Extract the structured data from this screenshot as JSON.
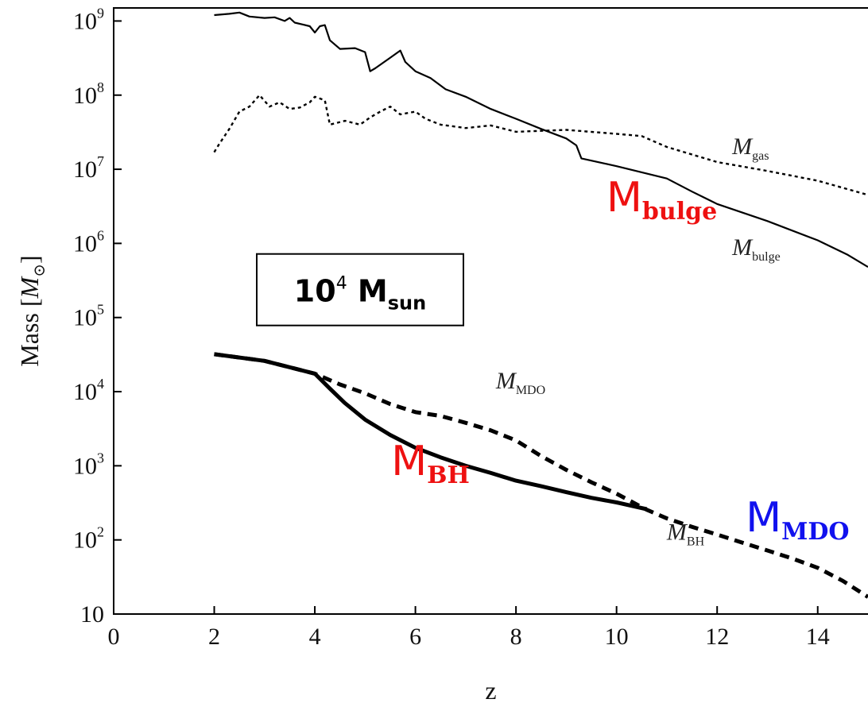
{
  "chart_data": {
    "type": "line",
    "title": "",
    "xlabel": "z",
    "ylabel_main": "Mass [",
    "ylabel_symbol": "M",
    "ylabel_sub": "⊙",
    "ylabel_close": "]",
    "xlim": [
      0,
      15
    ],
    "ylim": [
      10,
      1500000000
    ],
    "yscale": "log",
    "grid": false,
    "x_ticks": [
      "0",
      "2",
      "4",
      "6",
      "8",
      "10",
      "12",
      "14"
    ],
    "y_ticks": [
      {
        "base": "10",
        "exp": "9"
      },
      {
        "base": "10",
        "exp": "8"
      },
      {
        "base": "10",
        "exp": "7"
      },
      {
        "base": "10",
        "exp": "6"
      },
      {
        "base": "10",
        "exp": "5"
      },
      {
        "base": "10",
        "exp": "4"
      },
      {
        "base": "10",
        "exp": "3"
      },
      {
        "base": "10",
        "exp": "2"
      },
      {
        "base": "10",
        "exp": ""
      }
    ],
    "series": [
      {
        "name": "M_bulge",
        "style": "solid-thin",
        "points": [
          [
            2.0,
            1200000000.0
          ],
          [
            2.3,
            1250000000.0
          ],
          [
            2.5,
            1300000000.0
          ],
          [
            2.7,
            1150000000.0
          ],
          [
            3.0,
            1100000000.0
          ],
          [
            3.2,
            1120000000.0
          ],
          [
            3.4,
            1000000000.0
          ],
          [
            3.5,
            1100000000.0
          ],
          [
            3.6,
            950000000.0
          ],
          [
            3.9,
            850000000.0
          ],
          [
            4.0,
            700000000.0
          ],
          [
            4.1,
            850000000.0
          ],
          [
            4.2,
            880000000.0
          ],
          [
            4.3,
            550000000.0
          ],
          [
            4.5,
            420000000.0
          ],
          [
            4.8,
            430000000.0
          ],
          [
            5.0,
            380000000.0
          ],
          [
            5.1,
            210000000.0
          ],
          [
            5.2,
            230000000.0
          ],
          [
            5.5,
            320000000.0
          ],
          [
            5.7,
            400000000.0
          ],
          [
            5.8,
            280000000.0
          ],
          [
            6.0,
            210000000.0
          ],
          [
            6.3,
            170000000.0
          ],
          [
            6.6,
            120000000.0
          ],
          [
            7.0,
            95000000.0
          ],
          [
            7.5,
            65000000.0
          ],
          [
            8.0,
            48000000.0
          ],
          [
            8.5,
            35000000.0
          ],
          [
            9.0,
            26000000.0
          ],
          [
            9.2,
            21000000.0
          ],
          [
            9.3,
            14000000.0
          ],
          [
            10.0,
            11000000.0
          ],
          [
            11.0,
            7500000.0
          ],
          [
            11.5,
            5000000.0
          ],
          [
            12.0,
            3400000.0
          ],
          [
            13.0,
            2000000.0
          ],
          [
            14.0,
            1100000.0
          ],
          [
            14.6,
            700000.0
          ],
          [
            15.0,
            480000.0
          ]
        ]
      },
      {
        "name": "M_gas",
        "style": "dotted",
        "points": [
          [
            2.0,
            17000000.0
          ],
          [
            2.1,
            22000000.0
          ],
          [
            2.3,
            35000000.0
          ],
          [
            2.5,
            60000000.0
          ],
          [
            2.7,
            70000000.0
          ],
          [
            2.9,
            100000000.0
          ],
          [
            3.1,
            70000000.0
          ],
          [
            3.3,
            80000000.0
          ],
          [
            3.5,
            65000000.0
          ],
          [
            3.7,
            68000000.0
          ],
          [
            3.9,
            80000000.0
          ],
          [
            4.0,
            95000000.0
          ],
          [
            4.2,
            85000000.0
          ],
          [
            4.3,
            40000000.0
          ],
          [
            4.6,
            45000000.0
          ],
          [
            4.9,
            40000000.0
          ],
          [
            5.1,
            50000000.0
          ],
          [
            5.3,
            60000000.0
          ],
          [
            5.5,
            70000000.0
          ],
          [
            5.7,
            55000000.0
          ],
          [
            6.0,
            60000000.0
          ],
          [
            6.2,
            48000000.0
          ],
          [
            6.5,
            40000000.0
          ],
          [
            7.0,
            36000000.0
          ],
          [
            7.5,
            39000000.0
          ],
          [
            8.0,
            32000000.0
          ],
          [
            8.5,
            33000000.0
          ],
          [
            9.0,
            34000000.0
          ],
          [
            10.0,
            30000000.0
          ],
          [
            10.5,
            28000000.0
          ],
          [
            11.0,
            20000000.0
          ],
          [
            12.0,
            12500000.0
          ],
          [
            13.0,
            9500000.0
          ],
          [
            14.0,
            7000000.0
          ],
          [
            15.0,
            4500000.0
          ]
        ]
      },
      {
        "name": "M_MDO",
        "style": "dashed-thick",
        "points": [
          [
            2.0,
            32000.0
          ],
          [
            3.0,
            26000.0
          ],
          [
            4.0,
            17500.0
          ],
          [
            4.5,
            12500.0
          ],
          [
            5.0,
            9500.0
          ],
          [
            5.5,
            6800.0
          ],
          [
            6.0,
            5300.0
          ],
          [
            6.5,
            4700.0
          ],
          [
            7.0,
            3800.0
          ],
          [
            7.5,
            3000.0
          ],
          [
            8.0,
            2200.0
          ],
          [
            8.5,
            1350.0
          ],
          [
            9.0,
            880.0
          ],
          [
            9.5,
            600.0
          ],
          [
            10.0,
            420.0
          ],
          [
            10.6,
            255.0
          ],
          [
            11.0,
            195.0
          ],
          [
            11.5,
            150.0
          ],
          [
            12.0,
            118.0
          ],
          [
            12.5,
            92.0
          ],
          [
            13.0,
            72.0
          ],
          [
            13.5,
            56.0
          ],
          [
            14.0,
            42.0
          ],
          [
            14.5,
            28.0
          ],
          [
            15.0,
            17.0
          ]
        ]
      },
      {
        "name": "M_BH",
        "style": "solid-thick",
        "points": [
          [
            2.0,
            32000.0
          ],
          [
            3.0,
            26000.0
          ],
          [
            4.0,
            17500.0
          ],
          [
            4.3,
            11000.0
          ],
          [
            4.6,
            7000.0
          ],
          [
            5.0,
            4200.0
          ],
          [
            5.5,
            2600.0
          ],
          [
            6.0,
            1750.0
          ],
          [
            6.5,
            1300.0
          ],
          [
            7.0,
            1000.0
          ],
          [
            7.5,
            800.0
          ],
          [
            8.0,
            630.0
          ],
          [
            8.5,
            530.0
          ],
          [
            9.0,
            440.0
          ],
          [
            9.5,
            370.0
          ],
          [
            10.0,
            320.0
          ],
          [
            10.6,
            260.0
          ]
        ]
      }
    ],
    "curve_labels": {
      "gas": {
        "symbol": "M",
        "sub": "gas",
        "x": 12.3,
        "y": 16000000.0
      },
      "bulge": {
        "symbol": "M",
        "sub": "bulge",
        "x": 12.3,
        "y": 700000.0
      },
      "mdo": {
        "symbol": "M",
        "sub": "MDO",
        "x": 7.6,
        "y": 11000.0
      },
      "bh": {
        "symbol": "M",
        "sub": "BH",
        "x": 11.0,
        "y": 100.0
      }
    },
    "annotations": {
      "bulge": {
        "main": "M",
        "sub": "bulge",
        "color": "#ee1111",
        "x": 10.9,
        "y": 2700000.0
      },
      "bh": {
        "main": "M",
        "sub": "BH",
        "color": "#ee1111",
        "x": 6.3,
        "y": 750.0
      },
      "mdo": {
        "main": "M",
        "sub": "MDO",
        "color": "#1111ee",
        "x": 13.6,
        "y": 130.0
      },
      "box": {
        "main": "10",
        "sup": "4",
        "mid": " M",
        "sub": "sun",
        "x": 4.9,
        "y": 190000.0
      }
    }
  }
}
